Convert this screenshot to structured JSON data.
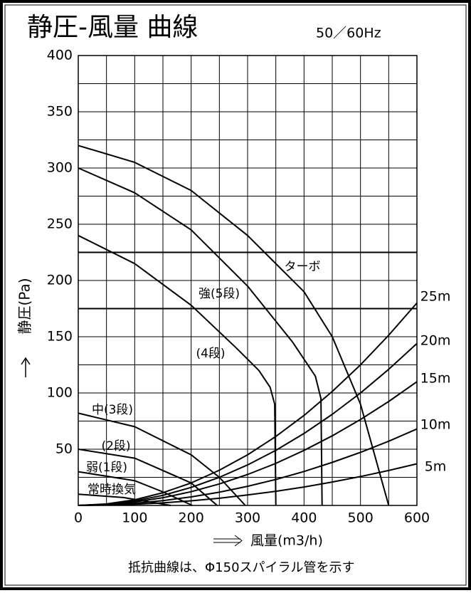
{
  "chart_data": {
    "type": "line",
    "title": "静圧-風量 曲線",
    "subtitle": "50／60Hz",
    "x_label": "風量(m3/h)",
    "y_label": "静圧(Pa)",
    "note": "抵抗曲線は、Φ150スパイラル管を示す",
    "xlim": [
      0,
      600
    ],
    "ylim": [
      0,
      400
    ],
    "xticks": [
      0,
      100,
      200,
      300,
      400,
      500,
      600
    ],
    "yticks": [
      50,
      100,
      150,
      200,
      250,
      300,
      350,
      400
    ],
    "x_minor_grid": [
      50,
      150,
      250,
      350,
      450,
      550
    ],
    "y_minor_grid": [
      25,
      75,
      125,
      175,
      225,
      275,
      325,
      375
    ],
    "bold_grid": [
      175,
      225
    ],
    "grid": true,
    "series": [
      {
        "name": "ターボ",
        "color": "#000000",
        "x": [
          0,
          100,
          200,
          300,
          400,
          450,
          500,
          550
        ],
        "values": [
          320,
          305,
          280,
          240,
          190,
          150,
          90,
          0
        ]
      },
      {
        "name": "強(5段)",
        "color": "#000000",
        "x": [
          0,
          100,
          200,
          300,
          380,
          420,
          430,
          432
        ],
        "values": [
          300,
          278,
          245,
          195,
          145,
          115,
          95,
          0
        ]
      },
      {
        "name": "(4段)",
        "color": "#000000",
        "x": [
          0,
          100,
          200,
          280,
          320,
          340,
          348,
          350
        ],
        "values": [
          240,
          215,
          178,
          140,
          120,
          105,
          90,
          0
        ]
      },
      {
        "name": "中(3段)",
        "color": "#000000",
        "x": [
          0,
          100,
          200,
          250,
          296
        ],
        "values": [
          82,
          70,
          45,
          25,
          0
        ]
      },
      {
        "name": "(2段)",
        "color": "#000000",
        "x": [
          0,
          100,
          200,
          246
        ],
        "values": [
          50,
          42,
          20,
          0
        ]
      },
      {
        "name": "弱(1段)",
        "color": "#000000",
        "x": [
          0,
          100,
          150,
          202
        ],
        "values": [
          30,
          22,
          12,
          0
        ]
      },
      {
        "name": "常時換気",
        "color": "#000000",
        "x": [
          0,
          80,
          164
        ],
        "values": [
          10,
          7,
          0
        ]
      },
      {
        "name": "25m",
        "color": "#000000",
        "x": [
          0,
          50,
          100,
          150,
          200,
          250,
          300,
          350,
          400,
          450,
          500,
          550,
          600
        ],
        "values": [
          0,
          1.3,
          5,
          11.3,
          20,
          31.3,
          45,
          61.3,
          80,
          101.3,
          125,
          151.3,
          180
        ]
      },
      {
        "name": "20m",
        "color": "#000000",
        "x": [
          0,
          50,
          100,
          150,
          200,
          250,
          300,
          350,
          400,
          450,
          500,
          550,
          600
        ],
        "values": [
          0,
          1,
          4,
          9,
          16,
          25,
          36,
          49,
          64,
          81,
          100,
          121,
          144
        ]
      },
      {
        "name": "15m",
        "color": "#000000",
        "x": [
          0,
          50,
          100,
          150,
          200,
          250,
          300,
          350,
          400,
          450,
          500,
          550,
          600
        ],
        "values": [
          0,
          0.8,
          3.1,
          6.9,
          12.2,
          19.1,
          27.5,
          37.4,
          48.9,
          61.9,
          76.4,
          92.4,
          110
        ]
      },
      {
        "name": "10m",
        "color": "#000000",
        "x": [
          0,
          50,
          100,
          150,
          200,
          250,
          300,
          350,
          400,
          450,
          500,
          550,
          600
        ],
        "values": [
          0,
          0.5,
          1.9,
          4.3,
          7.6,
          11.8,
          17,
          23.1,
          30.2,
          38.3,
          47.2,
          57.1,
          68
        ]
      },
      {
        "name": "5m",
        "color": "#000000",
        "x": [
          0,
          50,
          100,
          150,
          200,
          250,
          300,
          350,
          400,
          450,
          500,
          550,
          600
        ],
        "values": [
          0,
          0.3,
          1,
          2.3,
          4.1,
          6.4,
          9.3,
          12.6,
          16.4,
          20.8,
          25.7,
          31.1,
          37
        ]
      }
    ]
  }
}
